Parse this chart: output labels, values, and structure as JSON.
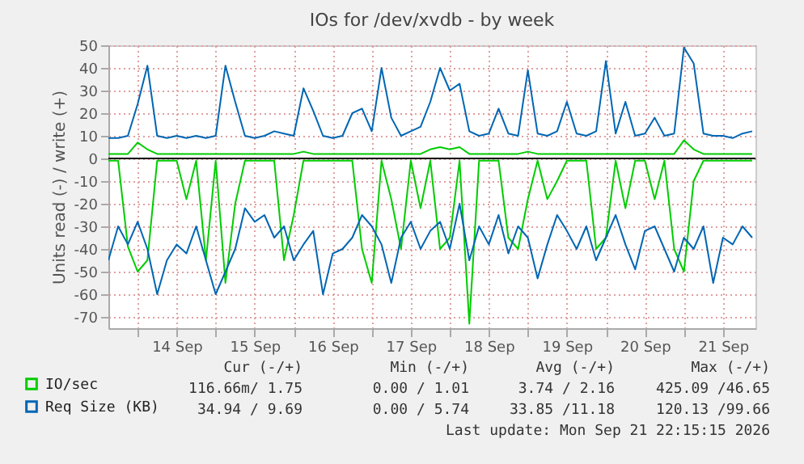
{
  "chart_data": {
    "type": "line",
    "title": "IOs for /dev/xvdb - by week",
    "ylabel": "Units read (-) / write (+)",
    "x": [
      "2026-09-13T15:00",
      "2026-09-13T18:00",
      "2026-09-13T21:00",
      "2026-09-14T00:00",
      "2026-09-14T03:00",
      "2026-09-14T06:00",
      "2026-09-14T09:00",
      "2026-09-14T12:00",
      "2026-09-14T15:00",
      "2026-09-14T18:00",
      "2026-09-14T21:00",
      "2026-09-15T00:00",
      "2026-09-15T03:00",
      "2026-09-15T06:00",
      "2026-09-15T09:00",
      "2026-09-15T12:00",
      "2026-09-15T15:00",
      "2026-09-15T18:00",
      "2026-09-15T21:00",
      "2026-09-16T00:00",
      "2026-09-16T03:00",
      "2026-09-16T06:00",
      "2026-09-16T09:00",
      "2026-09-16T12:00",
      "2026-09-16T15:00",
      "2026-09-16T18:00",
      "2026-09-16T21:00",
      "2026-09-17T00:00",
      "2026-09-17T03:00",
      "2026-09-17T06:00",
      "2026-09-17T09:00",
      "2026-09-17T12:00",
      "2026-09-17T15:00",
      "2026-09-17T18:00",
      "2026-09-17T21:00",
      "2026-09-18T00:00",
      "2026-09-18T03:00",
      "2026-09-18T06:00",
      "2026-09-18T09:00",
      "2026-09-18T12:00",
      "2026-09-18T15:00",
      "2026-09-18T18:00",
      "2026-09-18T21:00",
      "2026-09-19T00:00",
      "2026-09-19T03:00",
      "2026-09-19T06:00",
      "2026-09-19T09:00",
      "2026-09-19T12:00",
      "2026-09-19T15:00",
      "2026-09-19T18:00",
      "2026-09-19T21:00",
      "2026-09-20T00:00",
      "2026-09-20T03:00",
      "2026-09-20T06:00",
      "2026-09-20T09:00",
      "2026-09-20T12:00",
      "2026-09-20T15:00",
      "2026-09-20T18:00",
      "2026-09-20T21:00",
      "2026-09-21T00:00",
      "2026-09-21T03:00",
      "2026-09-21T06:00",
      "2026-09-21T09:00",
      "2026-09-21T12:00",
      "2026-09-21T15:00",
      "2026-09-21T18:00",
      "2026-09-21T21:00"
    ],
    "series": [
      {
        "color": "#00cc00",
        "values": [
          -1,
          -1,
          -39,
          -50,
          -45,
          -1,
          -1,
          -1,
          -18,
          -1,
          -45,
          -1,
          -55,
          -20,
          -1,
          -1,
          -1,
          -1,
          -45,
          -25,
          -1,
          -1,
          -1,
          -1,
          -1,
          -1,
          -40,
          -55,
          -1,
          -18,
          -40,
          -1,
          -22,
          -1,
          -40,
          -35,
          -1,
          -73,
          -1,
          -1,
          -1,
          -35,
          -40,
          -18,
          -1,
          -18,
          -10,
          -1,
          -1,
          -1,
          -40,
          -35,
          -1,
          -22,
          -1,
          -1,
          -18,
          -1,
          -40,
          -50,
          -10,
          -1,
          -1,
          -1,
          -1,
          -1,
          -1
        ]
      },
      {
        "name": "IO/sec",
        "color": "#00cc00",
        "values": [
          2,
          2,
          2,
          7,
          4,
          2,
          2,
          2,
          2,
          2,
          2,
          2,
          2,
          2,
          2,
          2,
          2,
          2,
          2,
          2,
          3,
          2,
          2,
          2,
          2,
          2,
          2,
          2,
          2,
          2,
          2,
          2,
          2,
          4,
          5,
          4,
          5,
          2,
          2,
          2,
          2,
          2,
          2,
          3,
          2,
          2,
          2,
          2,
          2,
          2,
          2,
          2,
          2,
          2,
          2,
          2,
          2,
          2,
          2,
          8,
          4,
          2,
          2,
          2,
          2,
          2,
          2
        ]
      },
      {
        "color": "#0066b3",
        "values": [
          -45,
          -30,
          -38,
          -28,
          -40,
          -60,
          -45,
          -38,
          -42,
          -30,
          -45,
          -60,
          -50,
          -40,
          -22,
          -28,
          -25,
          -35,
          -30,
          -45,
          -38,
          -32,
          -60,
          -42,
          -40,
          -35,
          -25,
          -30,
          -38,
          -55,
          -35,
          -28,
          -40,
          -32,
          -28,
          -40,
          -20,
          -45,
          -30,
          -38,
          -25,
          -42,
          -30,
          -35,
          -53,
          -38,
          -25,
          -32,
          -40,
          -30,
          -45,
          -35,
          -25,
          -38,
          -49,
          -32,
          -30,
          -40,
          -50,
          -35,
          -40,
          -30,
          -55,
          -35,
          -38,
          -30,
          -35
        ]
      },
      {
        "name": "Req Size (KB)",
        "color": "#0066b3",
        "values": [
          9,
          9,
          10,
          24,
          41,
          10,
          9,
          10,
          9,
          10,
          9,
          10,
          41,
          25,
          10,
          9,
          10,
          12,
          11,
          10,
          31,
          21,
          10,
          9,
          10,
          20,
          22,
          12,
          40,
          18,
          10,
          12,
          14,
          25,
          40,
          30,
          33,
          12,
          10,
          11,
          22,
          11,
          10,
          39,
          11,
          10,
          12,
          25,
          11,
          10,
          12,
          43,
          11,
          25,
          10,
          11,
          18,
          10,
          11,
          49,
          42,
          11,
          10,
          10,
          9,
          11,
          12
        ]
      }
    ],
    "xlim": [
      "2026-09-13T15:00",
      "2026-09-21T22:00"
    ],
    "xticks": [
      {
        "value": "2026-09-14T00:00",
        "label": null
      },
      {
        "value": "2026-09-14T12:00",
        "label": "14 Sep"
      },
      {
        "value": "2026-09-15T00:00",
        "label": null
      },
      {
        "value": "2026-09-15T12:00",
        "label": "15 Sep"
      },
      {
        "value": "2026-09-16T00:00",
        "label": null
      },
      {
        "value": "2026-09-16T12:00",
        "label": "16 Sep"
      },
      {
        "value": "2026-09-17T00:00",
        "label": null
      },
      {
        "value": "2026-09-17T12:00",
        "label": "17 Sep"
      },
      {
        "value": "2026-09-18T00:00",
        "label": null
      },
      {
        "value": "2026-09-18T12:00",
        "label": "18 Sep"
      },
      {
        "value": "2026-09-19T00:00",
        "label": null
      },
      {
        "value": "2026-09-19T12:00",
        "label": "19 Sep"
      },
      {
        "value": "2026-09-20T00:00",
        "label": null
      },
      {
        "value": "2026-09-20T12:00",
        "label": "20 Sep"
      },
      {
        "value": "2026-09-21T00:00",
        "label": null
      },
      {
        "value": "2026-09-21T12:00",
        "label": "21 Sep"
      }
    ],
    "ylim": [
      -75,
      50
    ],
    "yticks": [
      -70,
      -60,
      -50,
      -40,
      -30,
      -20,
      -10,
      0,
      10,
      20,
      30,
      40,
      50
    ],
    "ref_lines": [
      {
        "axis": "y",
        "value": 0,
        "color": "#000000"
      }
    ],
    "grid": true,
    "legend": "bottom",
    "marker": "none",
    "line_style": "solid",
    "annotations": [
      "Cur (-/+)",
      "Min (-/+)",
      "Avg (-/+)",
      "Max (-/+)",
      "116.66m/ 1.75",
      "0.00 / 1.01",
      "3.74 / 2.16",
      "425.09 /46.65",
      "34.94 / 9.69",
      "0.00 / 5.74",
      "33.85 /11.18",
      "120.13 /99.66",
      "Last update: Mon Sep 21 22:15:15 2026"
    ]
  }
}
